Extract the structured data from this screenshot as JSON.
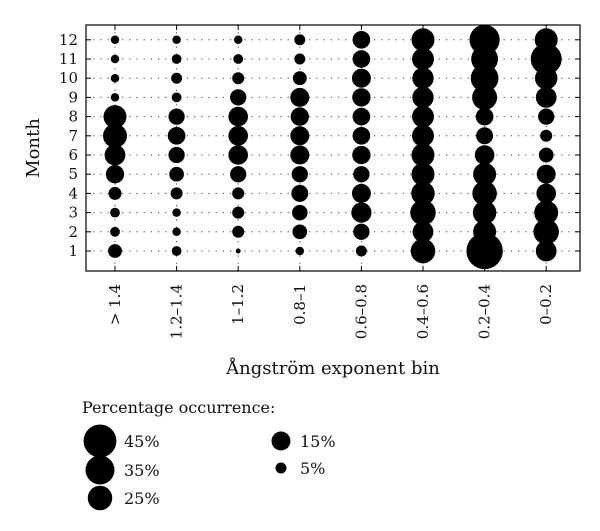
{
  "chart_data": {
    "type": "bubble-matrix",
    "xlabel": "Ångström exponent bin",
    "ylabel": "Month",
    "x_categories": [
      ">1.4",
      "1.2–1.4",
      "1–1.2",
      "0.8–1",
      "0.6–0.8",
      "0.4–0.6",
      "0.2–0.4",
      "0–0.2"
    ],
    "x_tick_labels": [
      "> 1.4",
      "1.2–1.4",
      "1–1.2",
      "0.8–1",
      "0.6–0.8",
      "0.4–0.6",
      "0.2–0.4",
      "0–0.2"
    ],
    "y_categories": [
      1,
      2,
      3,
      4,
      5,
      6,
      7,
      8,
      9,
      10,
      11,
      12
    ],
    "y_tick_labels": [
      "1",
      "2",
      "3",
      "4",
      "5",
      "6",
      "7",
      "8",
      "9",
      "10",
      "11",
      "12"
    ],
    "grid": "dotted",
    "units": "% occurrence",
    "values_by_bin": [
      [
        8,
        4,
        4,
        7,
        14,
        18,
        24,
        22,
        3,
        3,
        3,
        3
      ],
      [
        4,
        3,
        3,
        6,
        9,
        11,
        13,
        11,
        4,
        5,
        4,
        3
      ],
      [
        1,
        6,
        6,
        6,
        11,
        16,
        16,
        16,
        11,
        6,
        4,
        3
      ],
      [
        3,
        9,
        10,
        12,
        11,
        15,
        15,
        14,
        15,
        8,
        5,
        5
      ],
      [
        5,
        11,
        17,
        15,
        11,
        14,
        13,
        13,
        14,
        15,
        13,
        13
      ],
      [
        25,
        18,
        27,
        23,
        22,
        22,
        20,
        20,
        19,
        19,
        20,
        22
      ],
      [
        55,
        22,
        23,
        25,
        22,
        16,
        12,
        13,
        26,
        32,
        30,
        38
      ],
      [
        18,
        27,
        24,
        16,
        15,
        9,
        6,
        11,
        18,
        21,
        40,
        22
      ]
    ],
    "legend": {
      "title": "Percentage occurrence:",
      "entries": [
        {
          "label": "45%",
          "value": 45
        },
        {
          "label": "35%",
          "value": 35
        },
        {
          "label": "25%",
          "value": 25
        },
        {
          "label": "15%",
          "value": 15
        },
        {
          "label": "5%",
          "value": 5
        }
      ]
    }
  }
}
